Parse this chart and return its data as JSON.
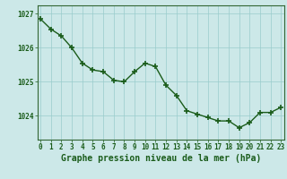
{
  "x": [
    0,
    1,
    2,
    3,
    4,
    5,
    6,
    7,
    8,
    9,
    10,
    11,
    12,
    13,
    14,
    15,
    16,
    17,
    18,
    19,
    20,
    21,
    22,
    23
  ],
  "y": [
    1026.85,
    1026.55,
    1026.35,
    1026.0,
    1025.55,
    1025.35,
    1025.3,
    1025.05,
    1025.0,
    1025.3,
    1025.55,
    1025.45,
    1024.9,
    1024.6,
    1024.15,
    1024.05,
    1023.95,
    1023.85,
    1023.85,
    1023.65,
    1023.8,
    1024.1,
    1024.1,
    1024.25
  ],
  "line_color": "#1a5c1a",
  "marker_color": "#1a5c1a",
  "bg_color": "#cce8e8",
  "grid_color": "#99cccc",
  "axis_color": "#1a5c1a",
  "border_color": "#336633",
  "title": "Graphe pression niveau de la mer (hPa)",
  "ylim_min": 1023.3,
  "ylim_max": 1027.25,
  "yticks": [
    1024,
    1025,
    1026,
    1027
  ],
  "xticks": [
    0,
    1,
    2,
    3,
    4,
    5,
    6,
    7,
    8,
    9,
    10,
    11,
    12,
    13,
    14,
    15,
    16,
    17,
    18,
    19,
    20,
    21,
    22,
    23
  ],
  "tick_fontsize": 5.5,
  "title_fontsize": 7.0,
  "marker_size": 4,
  "marker_edge_width": 1.2,
  "line_width": 1.0
}
